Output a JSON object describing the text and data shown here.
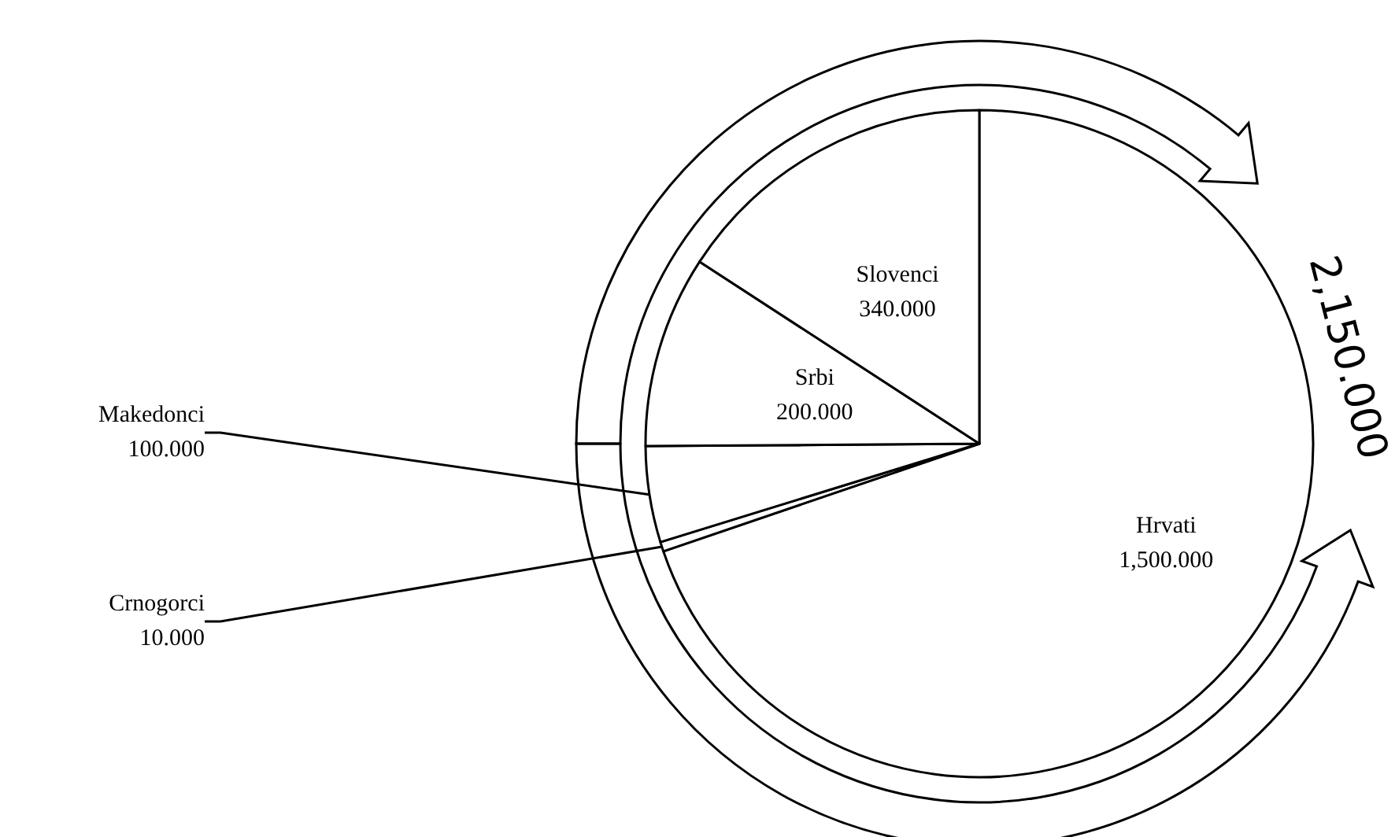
{
  "chart_data": {
    "type": "pie",
    "categories": [
      "Hrvati",
      "Crnogorci",
      "Makedonci",
      "Srbi",
      "Slovenci"
    ],
    "values": [
      1500,
      10,
      100,
      200,
      340
    ],
    "value_labels": [
      "1,500.000",
      "10.000",
      "100.000",
      "200.000",
      "340.000"
    ],
    "colors": [
      "#ffffff",
      "#ffffff",
      "#ffffff",
      "#ffffff",
      "#ffffff"
    ],
    "annotations": [
      "2,150.000"
    ]
  }
}
